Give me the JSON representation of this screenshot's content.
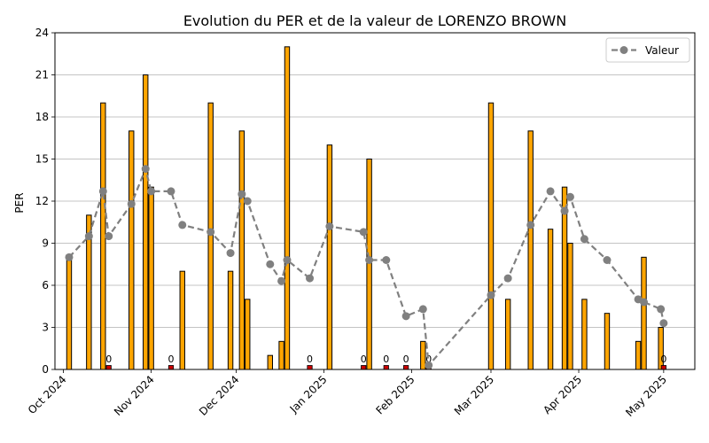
{
  "chart_data": {
    "type": "bar",
    "title": "Evolution du PER et de la valeur de LORENZO BROWN",
    "xlabel": "",
    "ylabel": "PER",
    "ylim": [
      0,
      24
    ],
    "yticks": [
      0,
      3,
      6,
      9,
      12,
      15,
      18,
      21,
      24
    ],
    "xlim": [
      "2024-09-28",
      "2025-05-12"
    ],
    "xticks": [
      {
        "date": "2024-10-01",
        "label": "Oct 2024"
      },
      {
        "date": "2024-11-01",
        "label": "Nov 2024"
      },
      {
        "date": "2024-12-01",
        "label": "Dec 2024"
      },
      {
        "date": "2025-01-01",
        "label": "Jan 2025"
      },
      {
        "date": "2025-02-01",
        "label": "Feb 2025"
      },
      {
        "date": "2025-03-01",
        "label": "Mar 2025"
      },
      {
        "date": "2025-04-01",
        "label": "Apr 2025"
      },
      {
        "date": "2025-05-01",
        "label": "May 2025"
      }
    ],
    "grid": "horizontal",
    "legend_position": "top-right",
    "zero_label": "0",
    "per_bars": {
      "color_positive": "#ffa500",
      "color_zero": "#cc0000",
      "points": [
        {
          "date": "2024-10-03",
          "value": 8
        },
        {
          "date": "2024-10-10",
          "value": 11
        },
        {
          "date": "2024-10-15",
          "value": 19
        },
        {
          "date": "2024-10-17",
          "value": 0
        },
        {
          "date": "2024-10-25",
          "value": 17
        },
        {
          "date": "2024-10-30",
          "value": 21
        },
        {
          "date": "2024-11-01",
          "value": 13
        },
        {
          "date": "2024-11-08",
          "value": 0
        },
        {
          "date": "2024-11-12",
          "value": 7
        },
        {
          "date": "2024-11-22",
          "value": 19
        },
        {
          "date": "2024-11-29",
          "value": 7
        },
        {
          "date": "2024-12-03",
          "value": 17
        },
        {
          "date": "2024-12-05",
          "value": 5
        },
        {
          "date": "2024-12-13",
          "value": 1
        },
        {
          "date": "2024-12-17",
          "value": 2
        },
        {
          "date": "2024-12-19",
          "value": 23
        },
        {
          "date": "2024-12-27",
          "value": 0
        },
        {
          "date": "2025-01-03",
          "value": 16
        },
        {
          "date": "2025-01-15",
          "value": 0
        },
        {
          "date": "2025-01-17",
          "value": 15
        },
        {
          "date": "2025-01-23",
          "value": 0
        },
        {
          "date": "2025-01-30",
          "value": 0
        },
        {
          "date": "2025-02-05",
          "value": 2
        },
        {
          "date": "2025-02-07",
          "value": 0
        },
        {
          "date": "2025-03-01",
          "value": 19
        },
        {
          "date": "2025-03-07",
          "value": 5
        },
        {
          "date": "2025-03-15",
          "value": 17
        },
        {
          "date": "2025-03-22",
          "value": 10
        },
        {
          "date": "2025-03-27",
          "value": 13
        },
        {
          "date": "2025-03-29",
          "value": 9
        },
        {
          "date": "2025-04-03",
          "value": 5
        },
        {
          "date": "2025-04-11",
          "value": 4
        },
        {
          "date": "2025-04-22",
          "value": 2
        },
        {
          "date": "2025-04-24",
          "value": 8
        },
        {
          "date": "2025-04-30",
          "value": 3
        },
        {
          "date": "2025-05-01",
          "value": 0
        }
      ]
    },
    "series": [
      {
        "name": "Valeur",
        "color": "#808080",
        "style": "dashed-with-circles",
        "points": [
          {
            "date": "2024-10-03",
            "value": 8.0
          },
          {
            "date": "2024-10-10",
            "value": 9.5
          },
          {
            "date": "2024-10-15",
            "value": 12.7
          },
          {
            "date": "2024-10-17",
            "value": 9.5
          },
          {
            "date": "2024-10-25",
            "value": 11.8
          },
          {
            "date": "2024-10-30",
            "value": 14.3
          },
          {
            "date": "2024-11-01",
            "value": 12.7
          },
          {
            "date": "2024-11-08",
            "value": 12.7
          },
          {
            "date": "2024-11-12",
            "value": 10.3
          },
          {
            "date": "2024-11-22",
            "value": 9.8
          },
          {
            "date": "2024-11-29",
            "value": 8.3
          },
          {
            "date": "2024-12-03",
            "value": 12.5
          },
          {
            "date": "2024-12-05",
            "value": 12.0
          },
          {
            "date": "2024-12-13",
            "value": 7.5
          },
          {
            "date": "2024-12-17",
            "value": 6.3
          },
          {
            "date": "2024-12-19",
            "value": 7.8
          },
          {
            "date": "2024-12-27",
            "value": 6.5
          },
          {
            "date": "2025-01-03",
            "value": 10.2
          },
          {
            "date": "2025-01-15",
            "value": 9.8
          },
          {
            "date": "2025-01-17",
            "value": 7.8
          },
          {
            "date": "2025-01-23",
            "value": 7.8
          },
          {
            "date": "2025-01-30",
            "value": 3.8
          },
          {
            "date": "2025-02-05",
            "value": 4.3
          },
          {
            "date": "2025-02-07",
            "value": 0.3
          },
          {
            "date": "2025-03-01",
            "value": 5.3
          },
          {
            "date": "2025-03-07",
            "value": 6.5
          },
          {
            "date": "2025-03-15",
            "value": 10.3
          },
          {
            "date": "2025-03-22",
            "value": 12.7
          },
          {
            "date": "2025-03-27",
            "value": 11.3
          },
          {
            "date": "2025-03-29",
            "value": 12.3
          },
          {
            "date": "2025-04-03",
            "value": 9.3
          },
          {
            "date": "2025-04-11",
            "value": 7.8
          },
          {
            "date": "2025-04-22",
            "value": 5.0
          },
          {
            "date": "2025-04-24",
            "value": 4.8
          },
          {
            "date": "2025-04-30",
            "value": 4.3
          },
          {
            "date": "2025-05-01",
            "value": 3.3
          }
        ]
      }
    ]
  }
}
